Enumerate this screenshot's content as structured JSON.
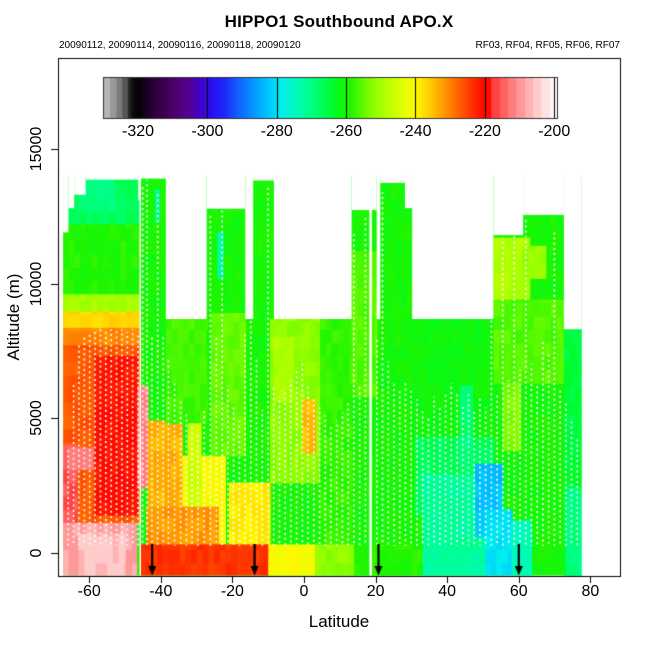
{
  "header": {
    "title": "HIPPO1 Southbound APO.X",
    "dates": "20090112, 20090114, 20090116, 20090118, 20090120",
    "flights": "RF03, RF04, RF05, RF06, RF07"
  },
  "chart_data": {
    "type": "heatmap",
    "title": "HIPPO1 Southbound APO.X",
    "xlabel": "Latitude",
    "ylabel": "Altitude (m)",
    "x": {
      "ticks": [
        -60,
        -40,
        -20,
        0,
        20,
        40,
        60,
        80
      ],
      "range": [
        -68.8,
        88.3
      ]
    },
    "y": {
      "ticks": [
        0,
        5000,
        10000,
        15000
      ],
      "range": [
        -873,
        18383
      ]
    },
    "colorbar": {
      "ticks": [
        -320,
        -300,
        -280,
        -260,
        -240,
        -220,
        -200
      ],
      "domain": [
        -330.1,
        -199.2
      ],
      "stops": [
        [
          -330.1,
          "#B5B5B5"
        ],
        [
          -328.2,
          "#B5B5B5"
        ],
        [
          -328.1,
          "#989898"
        ],
        [
          -326.4,
          "#989898"
        ],
        [
          -326.3,
          "#7A7A7A"
        ],
        [
          -324.7,
          "#7A7A7A"
        ],
        [
          -324.6,
          "#575757"
        ],
        [
          -323.2,
          "#575757"
        ],
        [
          -323.1,
          "#2F2F2F"
        ],
        [
          -321.5,
          "#0A0A0A"
        ],
        [
          -320.0,
          "#08000A"
        ],
        [
          -315.0,
          "#2E0040"
        ],
        [
          -310.0,
          "#4C0066"
        ],
        [
          -306.0,
          "#54008C"
        ],
        [
          -302.0,
          "#4303C8"
        ],
        [
          -299.0,
          "#2B0DF0"
        ],
        [
          -295.0,
          "#1E2BFA"
        ],
        [
          -291.0,
          "#1262FF"
        ],
        [
          -287.0,
          "#0894FF"
        ],
        [
          -283.0,
          "#00C2FF"
        ],
        [
          -279.0,
          "#00EFF0"
        ],
        [
          -275.0,
          "#00FAC0"
        ],
        [
          -271.0,
          "#00FF8E"
        ],
        [
          -267.0,
          "#00FF5A"
        ],
        [
          -263.0,
          "#00FB1E"
        ],
        [
          -259.0,
          "#20F500"
        ],
        [
          -255.0,
          "#66FA00"
        ],
        [
          -251.0,
          "#9CFF00"
        ],
        [
          -247.0,
          "#C4FF00"
        ],
        [
          -243.0,
          "#E8FF00"
        ],
        [
          -240.0,
          "#FFF800"
        ],
        [
          -236.0,
          "#FFCC00"
        ],
        [
          -232.0,
          "#FF9900"
        ],
        [
          -228.0,
          "#FF6600"
        ],
        [
          -224.0,
          "#FF3300"
        ],
        [
          -220.5,
          "#FF0A00"
        ],
        [
          -218.3,
          "#FF0A00"
        ],
        [
          -218.2,
          "#FF4343"
        ],
        [
          -215.9,
          "#FF4343"
        ],
        [
          -215.8,
          "#FF6060"
        ],
        [
          -213.5,
          "#FF6060"
        ],
        [
          -213.4,
          "#FF7D7D"
        ],
        [
          -211.1,
          "#FF7D7D"
        ],
        [
          -211.0,
          "#FF9898"
        ],
        [
          -208.7,
          "#FF9898"
        ],
        [
          -208.6,
          "#FFB2B2"
        ],
        [
          -206.3,
          "#FFB2B2"
        ],
        [
          -206.2,
          "#FFCBCB"
        ],
        [
          -203.9,
          "#FFCBCB"
        ],
        [
          -203.8,
          "#FFE2E2"
        ],
        [
          -201.5,
          "#FFE2E2"
        ],
        [
          -201.4,
          "#FFF4F4"
        ],
        [
          -199.2,
          "#FFF9F9"
        ]
      ]
    },
    "data_extent": {
      "lat": [
        -67.3,
        77.6
      ],
      "alt": [
        -880,
        13900
      ]
    },
    "columns": [
      [
        -67.3,
        -65.8,
        11900
      ],
      [
        -65.8,
        -64.2,
        12800
      ],
      [
        -64.2,
        -61,
        13300
      ],
      [
        -61,
        -46.3,
        13860
      ],
      [
        -46.3,
        -45.8,
        13100
      ],
      [
        -45.8,
        -38.6,
        13900
      ],
      [
        -38.6,
        -27.2,
        8680
      ],
      [
        -27.2,
        -16.4,
        12780
      ],
      [
        -16.4,
        -14.2,
        8680
      ],
      [
        -14.2,
        -8.4,
        13830
      ],
      [
        -8.4,
        13.3,
        8680
      ],
      [
        13.3,
        20.3,
        12730
      ],
      [
        20.3,
        21.3,
        8680
      ],
      [
        21.3,
        28.2,
        13740
      ],
      [
        28.2,
        30.2,
        12800
      ],
      [
        30.2,
        52.9,
        8680
      ],
      [
        52.9,
        61.2,
        11800
      ],
      [
        61.2,
        72.6,
        12550
      ],
      [
        72.6,
        77.6,
        8300
      ]
    ],
    "regions": [
      [
        -67.3,
        77.6,
        -880,
        14000,
        -260
      ],
      [
        -67.3,
        -46,
        12200,
        13900,
        -267
      ],
      [
        -63,
        -53,
        12700,
        13860,
        -270
      ],
      [
        -67.3,
        -46,
        9600,
        12200,
        -259
      ],
      [
        -67.3,
        -46,
        8950,
        9600,
        -250
      ],
      [
        -67.3,
        -46,
        8350,
        8950,
        -237
      ],
      [
        -67.3,
        -46,
        7700,
        8350,
        -231
      ],
      [
        -67.3,
        -45.9,
        1100,
        7700,
        -227
      ],
      [
        -58.5,
        -46.5,
        1400,
        7300,
        -221
      ],
      [
        -67.3,
        -63.5,
        1100,
        4000,
        -215
      ],
      [
        -66,
        -59,
        3100,
        3900,
        -212
      ],
      [
        -46.5,
        -43.6,
        2400,
        6200,
        -212
      ],
      [
        -67.3,
        -46.8,
        -880,
        1100,
        -209
      ],
      [
        -63,
        -50,
        -880,
        700,
        -206
      ],
      [
        -43.6,
        -34,
        300,
        4900,
        -234
      ],
      [
        -34,
        -22,
        300,
        3600,
        -241
      ],
      [
        -38.6,
        -27.2,
        4800,
        8680,
        -257
      ],
      [
        -32.5,
        -28.8,
        900,
        4800,
        -246
      ],
      [
        -41.6,
        -40.4,
        12300,
        13500,
        -272
      ],
      [
        -24.2,
        -22.6,
        10200,
        11900,
        -273
      ],
      [
        -26,
        -16.4,
        3600,
        8900,
        -255
      ],
      [
        -21,
        -9.5,
        300,
        2600,
        -239
      ],
      [
        -9.5,
        4.5,
        2600,
        8680,
        -252
      ],
      [
        -8.5,
        -3,
        5600,
        8000,
        -249
      ],
      [
        -0.5,
        3.2,
        3700,
        5700,
        -235
      ],
      [
        4.5,
        13.3,
        300,
        8680,
        -258
      ],
      [
        13.3,
        20.3,
        5800,
        11200,
        -256
      ],
      [
        30.2,
        52.9,
        4300,
        8680,
        -261
      ],
      [
        31,
        52.9,
        1400,
        4300,
        -267
      ],
      [
        33,
        50.5,
        -880,
        2900,
        -272
      ],
      [
        43.5,
        47,
        2900,
        6200,
        -269
      ],
      [
        47.8,
        55.4,
        600,
        3300,
        -283
      ],
      [
        50.5,
        58,
        -880,
        1600,
        -280
      ],
      [
        58,
        63.5,
        -880,
        1200,
        -274
      ],
      [
        52.9,
        63,
        9400,
        11700,
        -249
      ],
      [
        61,
        67.5,
        10200,
        11400,
        -251
      ],
      [
        52.9,
        72.6,
        6300,
        9400,
        -256
      ],
      [
        55.5,
        60.5,
        3800,
        6300,
        -253
      ],
      [
        72.6,
        77.6,
        -880,
        8300,
        -265
      ],
      [
        73.2,
        77.6,
        -880,
        2400,
        -270
      ],
      [
        -44,
        -24,
        300,
        1700,
        -232
      ],
      [
        -45.9,
        -10,
        -880,
        300,
        -224
      ],
      [
        -10,
        3,
        -880,
        300,
        -241
      ],
      [
        3,
        14,
        -880,
        300,
        -252
      ],
      [
        14,
        33,
        -880,
        300,
        -259
      ]
    ],
    "gaps": [
      [
        -45.75,
        1.5
      ],
      [
        18.6,
        2.5
      ]
    ],
    "profiles": [
      [
        -66,
        3800
      ],
      [
        -64.5,
        6300
      ],
      [
        -63,
        7800
      ],
      [
        -61.5,
        8100
      ],
      [
        -60,
        8200
      ],
      [
        -58.5,
        8250
      ],
      [
        -57,
        8300
      ],
      [
        -55.5,
        8300
      ],
      [
        -54,
        8300
      ],
      [
        -52.5,
        8250
      ],
      [
        -51,
        8300
      ],
      [
        -49.5,
        8200
      ],
      [
        -48,
        8300
      ],
      [
        -46.5,
        8200
      ],
      [
        -45.2,
        13600
      ],
      [
        -44,
        13850
      ],
      [
        -42.6,
        8000
      ],
      [
        -41,
        13400
      ],
      [
        -39.5,
        8100
      ],
      [
        -38,
        7200
      ],
      [
        -36.3,
        6400
      ],
      [
        -34.6,
        5700
      ],
      [
        -33,
        5200
      ],
      [
        -31.4,
        4800
      ],
      [
        -29.8,
        4500
      ],
      [
        -28,
        5300
      ],
      [
        -26.3,
        12600
      ],
      [
        -24.6,
        8100
      ],
      [
        -23,
        12700
      ],
      [
        -21.4,
        6200
      ],
      [
        -19.8,
        5400
      ],
      [
        -18.2,
        4900
      ],
      [
        -16.6,
        8200
      ],
      [
        -15,
        13800
      ],
      [
        -13.4,
        7200
      ],
      [
        -11.8,
        5300
      ],
      [
        -10.2,
        13600
      ],
      [
        -8.6,
        6200
      ],
      [
        -7,
        5800
      ],
      [
        -5.4,
        6100
      ],
      [
        -3.8,
        6400
      ],
      [
        -2.2,
        6800
      ],
      [
        -0.6,
        7100
      ],
      [
        1,
        6300
      ],
      [
        2.6,
        5800
      ],
      [
        4.2,
        5400
      ],
      [
        5.8,
        5100
      ],
      [
        7.4,
        4700
      ],
      [
        9,
        4900
      ],
      [
        10.6,
        5200
      ],
      [
        12.2,
        5600
      ],
      [
        13.8,
        11900
      ],
      [
        15.4,
        6200
      ],
      [
        17,
        12500
      ],
      [
        20.2,
        7900
      ],
      [
        21.8,
        13400
      ],
      [
        23.4,
        7100
      ],
      [
        25,
        6300
      ],
      [
        26.6,
        6000
      ],
      [
        28.2,
        6400
      ],
      [
        29.8,
        6100
      ],
      [
        31.4,
        5700
      ],
      [
        33,
        5300
      ],
      [
        34.6,
        5000
      ],
      [
        36.2,
        5800
      ],
      [
        37.8,
        5400
      ],
      [
        39.4,
        5900
      ],
      [
        41,
        6300
      ],
      [
        42.6,
        5900
      ],
      [
        44.2,
        5500
      ],
      [
        45.8,
        5900
      ],
      [
        47.4,
        5300
      ],
      [
        49,
        5800
      ],
      [
        50.6,
        5400
      ],
      [
        52.2,
        11400
      ],
      [
        53.8,
        5900
      ],
      [
        55.4,
        11700
      ],
      [
        57,
        6400
      ],
      [
        58.6,
        12300
      ],
      [
        60.2,
        6800
      ],
      [
        61.8,
        12400
      ],
      [
        63.4,
        7000
      ],
      [
        65,
        6200
      ],
      [
        66.6,
        7900
      ],
      [
        68.2,
        7400
      ],
      [
        69.8,
        11900
      ],
      [
        71.4,
        6100
      ],
      [
        73,
        5600
      ],
      [
        74.6,
        4900
      ],
      [
        76.2,
        4200
      ]
    ],
    "arrows": [
      -42.4,
      -13.8,
      20.8,
      60.0
    ]
  }
}
